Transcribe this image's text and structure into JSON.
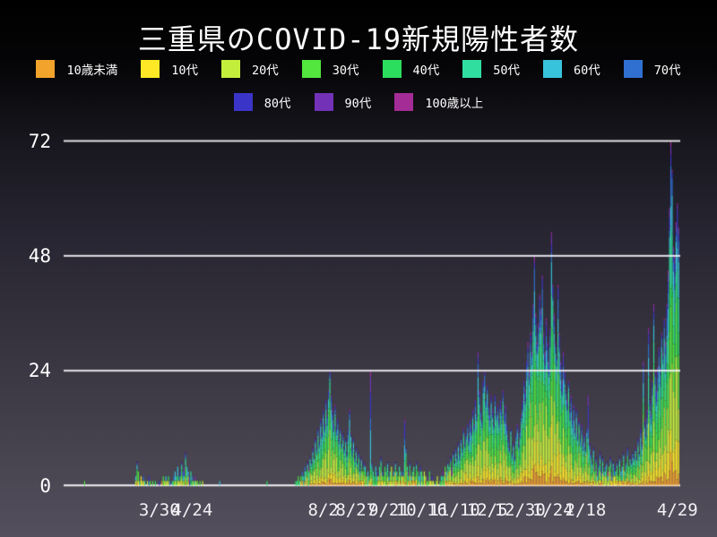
{
  "chart_data": {
    "type": "bar",
    "stacked": true,
    "title": "三重県のCOVID-19新規陽性者数",
    "xlabel": "",
    "ylabel": "",
    "ylim": [
      0,
      72
    ],
    "grid": true,
    "legend_position": "top",
    "grid_color": "#f5f3f7",
    "text_color": "#ffffff",
    "background": {
      "top": "#000000",
      "bottom": "#544f5d"
    },
    "y_ticks": [
      0,
      24,
      48,
      72
    ],
    "x_ticks": [
      {
        "label": "3/30",
        "day": 73
      },
      {
        "label": "4/24",
        "day": 98
      },
      {
        "label": "8/2",
        "day": 198
      },
      {
        "label": "8/27",
        "day": 223
      },
      {
        "label": "9/21",
        "day": 248
      },
      {
        "label": "10/16",
        "day": 273
      },
      {
        "label": "11/10",
        "day": 298
      },
      {
        "label": "12/5",
        "day": 323
      },
      {
        "label": "12/30",
        "day": 348
      },
      {
        "label": "1/24",
        "day": 373
      },
      {
        "label": "2/18",
        "day": 398
      },
      {
        "label": "4/29",
        "day": 468
      }
    ],
    "age_groups": [
      {
        "label": "10歳未満",
        "color": "#F2A32C",
        "legend_row": 1
      },
      {
        "label": "10代",
        "color": "#FFE926",
        "legend_row": 1
      },
      {
        "label": "20代",
        "color": "#C3EF3C",
        "legend_row": 1
      },
      {
        "label": "30代",
        "color": "#52E63E",
        "legend_row": 1
      },
      {
        "label": "40代",
        "color": "#2CDE5E",
        "legend_row": 1
      },
      {
        "label": "50代",
        "color": "#30DFA0",
        "legend_row": 1
      },
      {
        "label": "60代",
        "color": "#38C3DC",
        "legend_row": 1
      },
      {
        "label": "70代",
        "color": "#3070D1",
        "legend_row": 1
      },
      {
        "label": "80代",
        "color": "#3B34C8",
        "legend_row": 2
      },
      {
        "label": "90代",
        "color": "#7331B7",
        "legend_row": 2
      },
      {
        "label": "100歳以上",
        "color": "#A32C96",
        "legend_row": 2
      }
    ],
    "age_distribution_weights": [
      5,
      10,
      22,
      16,
      14,
      12,
      8,
      6,
      4,
      2,
      1
    ],
    "elderly_weights": [
      1,
      2,
      4,
      5,
      7,
      10,
      16,
      20,
      15,
      8,
      3
    ],
    "elderly_dominant_day_indices": [
      234,
      260,
      400
    ],
    "daily_totals": [
      0,
      0,
      0,
      0,
      0,
      0,
      0,
      0,
      0,
      0,
      0,
      0,
      0,
      0,
      0,
      0,
      1,
      0,
      0,
      0,
      0,
      0,
      0,
      0,
      0,
      0,
      0,
      0,
      0,
      0,
      0,
      0,
      0,
      0,
      0,
      0,
      0,
      0,
      0,
      0,
      0,
      0,
      0,
      0,
      0,
      0,
      0,
      0,
      0,
      0,
      0,
      0,
      0,
      0,
      0,
      2,
      5,
      3,
      1,
      2,
      1,
      2,
      1,
      0,
      1,
      2,
      1,
      0,
      1,
      0,
      1,
      0,
      0,
      1,
      0,
      1,
      2,
      1,
      2,
      1,
      2,
      1,
      0,
      1,
      2,
      3,
      2,
      4,
      2,
      3,
      5,
      3,
      4,
      7,
      4,
      3,
      2,
      3,
      2,
      1,
      2,
      1,
      1,
      0,
      1,
      0,
      1,
      0,
      0,
      0,
      0,
      0,
      0,
      0,
      0,
      0,
      0,
      0,
      0,
      1,
      0,
      0,
      0,
      0,
      0,
      0,
      0,
      0,
      0,
      0,
      0,
      0,
      0,
      0,
      0,
      0,
      0,
      0,
      0,
      0,
      0,
      0,
      0,
      0,
      0,
      0,
      0,
      0,
      0,
      0,
      0,
      0,
      0,
      0,
      0,
      1,
      0,
      0,
      0,
      0,
      0,
      0,
      0,
      0,
      0,
      0,
      0,
      0,
      0,
      0,
      0,
      0,
      0,
      0,
      0,
      0,
      0,
      1,
      1,
      2,
      1,
      2,
      3,
      2,
      4,
      3,
      5,
      4,
      6,
      5,
      8,
      6,
      10,
      8,
      12,
      9,
      14,
      11,
      16,
      13,
      18,
      15,
      20,
      24,
      19,
      16,
      13,
      17,
      12,
      14,
      10,
      12,
      9,
      11,
      8,
      10,
      7,
      12,
      16,
      11,
      8,
      10,
      6,
      8,
      5,
      7,
      4,
      6,
      3,
      5,
      4,
      2,
      3,
      2,
      24,
      5,
      3,
      2,
      4,
      3,
      2,
      4,
      6,
      3,
      2,
      4,
      3,
      5,
      2,
      3,
      4,
      2,
      3,
      5,
      3,
      2,
      4,
      3,
      2,
      3,
      14,
      8,
      4,
      3,
      5,
      2,
      3,
      4,
      2,
      5,
      3,
      2,
      4,
      3,
      2,
      3,
      2,
      1,
      2,
      3,
      1,
      2,
      1,
      0,
      1,
      2,
      0,
      1,
      2,
      3,
      2,
      4,
      3,
      5,
      4,
      6,
      4,
      7,
      5,
      8,
      6,
      9,
      7,
      10,
      8,
      12,
      9,
      11,
      13,
      10,
      14,
      12,
      16,
      13,
      18,
      15,
      28,
      20,
      16,
      14,
      22,
      24,
      18,
      21,
      17,
      15,
      19,
      16,
      13,
      19,
      15,
      17,
      14,
      18,
      16,
      20,
      15,
      17,
      13,
      10,
      8,
      12,
      7,
      9,
      6,
      11,
      13,
      9,
      12,
      15,
      18,
      22,
      20,
      26,
      30,
      24,
      32,
      28,
      38,
      48,
      36,
      30,
      34,
      40,
      37,
      44,
      32,
      28,
      35,
      30,
      26,
      33,
      53,
      42,
      36,
      30,
      27,
      42,
      32,
      26,
      22,
      28,
      24,
      20,
      18,
      22,
      16,
      19,
      14,
      17,
      12,
      16,
      11,
      14,
      10,
      13,
      9,
      11,
      8,
      12,
      19,
      9,
      7,
      5,
      8,
      4,
      6,
      3,
      5,
      7,
      4,
      6,
      3,
      4,
      5,
      3,
      4,
      6,
      3,
      5,
      4,
      3,
      5,
      2,
      6,
      3,
      4,
      7,
      3,
      5,
      8,
      4,
      6,
      5,
      7,
      6,
      8,
      6,
      10,
      7,
      12,
      9,
      26,
      14,
      11,
      16,
      33,
      18,
      15,
      22,
      38,
      24,
      20,
      25,
      29,
      25,
      32,
      28,
      35,
      30,
      38,
      45,
      58,
      72,
      66,
      50,
      48,
      55,
      59,
      54
    ]
  }
}
